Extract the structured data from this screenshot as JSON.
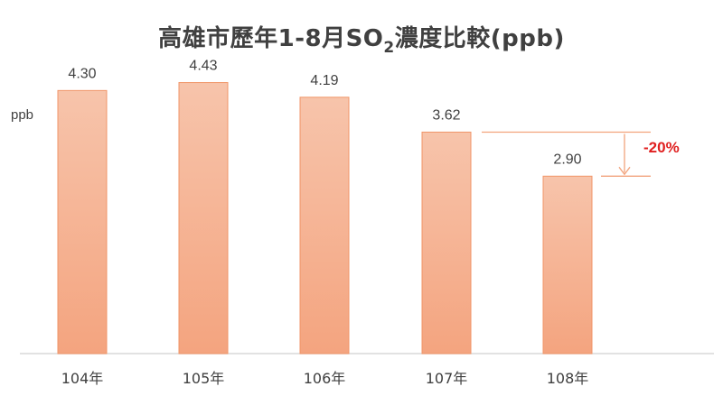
{
  "title": {
    "prefix": "高雄市歷年1-8月SO",
    "subscript": "2",
    "suffix": "濃度比較(ppb)"
  },
  "colors": {
    "bar_top": "#f7c4ab",
    "bar_bottom": "#f4a47f",
    "bar_stroke": "#f09568",
    "annotation_line": "#f2a37c",
    "annotation_text": "#e02020",
    "label_text": "#404040",
    "axis": "#d9d9d9"
  },
  "chart_data": {
    "type": "bar",
    "categories": [
      "104年",
      "105年",
      "106年",
      "107年",
      "108年"
    ],
    "values": [
      4.3,
      4.43,
      4.19,
      3.62,
      2.9
    ],
    "value_labels": [
      "4.30",
      "4.43",
      "4.19",
      "3.62",
      "2.90"
    ],
    "ylabel": "ppb",
    "ylim": [
      0,
      4.6
    ],
    "grid": false,
    "legend": "none",
    "annotation": {
      "text": "-20%",
      "from_category": "107年",
      "to_category": "108年"
    }
  }
}
